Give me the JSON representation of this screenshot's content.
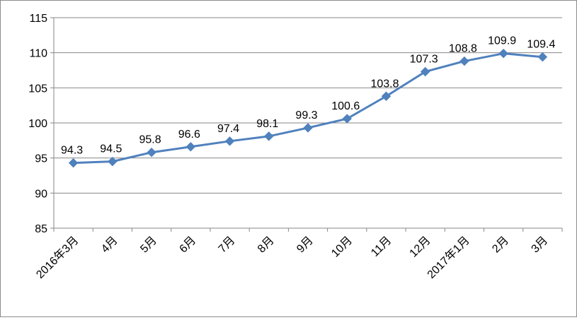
{
  "chart_data": {
    "type": "line",
    "title": "",
    "xlabel": "",
    "ylabel": "",
    "categories": [
      "2016年3月",
      "4月",
      "5月",
      "6月",
      "7月",
      "8月",
      "9月",
      "10月",
      "11月",
      "12月",
      "2017年1月",
      "2月",
      "3月"
    ],
    "series": [
      {
        "values": [
          94.3,
          94.5,
          95.8,
          96.6,
          97.4,
          98.1,
          99.3,
          100.6,
          103.8,
          107.3,
          108.8,
          109.9,
          109.4
        ],
        "color": "#4f81bd",
        "marker": "diamond"
      }
    ],
    "data_labels": [
      "94.3",
      "94.5",
      "95.8",
      "96.6",
      "97.4",
      "98.1",
      "99.3",
      "100.6",
      "103.8",
      "107.3",
      "108.8",
      "109.9",
      "109.4"
    ],
    "ylim": [
      85,
      115
    ],
    "yticks": [
      85,
      90,
      95,
      100,
      105,
      110,
      115
    ],
    "ytick_labels": [
      "85",
      "90",
      "95",
      "100",
      "105",
      "110",
      "115"
    ],
    "grid": "horizontal",
    "legend": "none"
  }
}
